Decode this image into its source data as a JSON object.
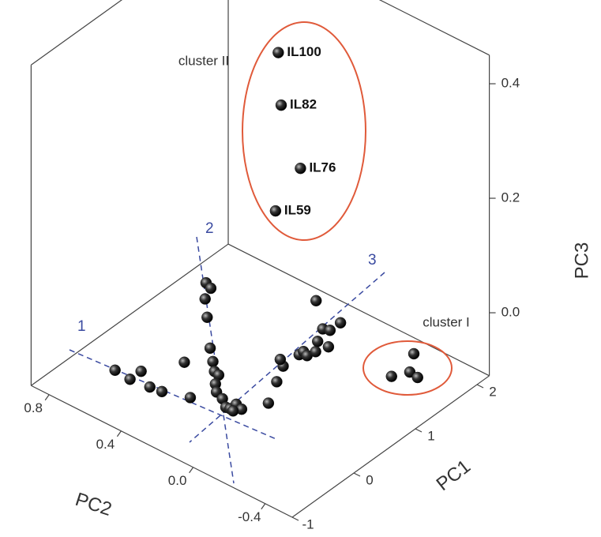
{
  "chart_data": {
    "type": "scatter3d",
    "xlabel": "PC1",
    "ylabel": "PC2",
    "zlabel": "PC3",
    "xlim": [
      -1,
      2.2
    ],
    "ylim": [
      -0.55,
      0.9
    ],
    "zlim": [
      -0.11,
      0.45
    ],
    "xticks": [
      -1,
      0,
      1,
      2
    ],
    "yticks": [
      -0.4,
      {
        "value": 0,
        "label": "0.0"
      },
      0.4,
      0.8
    ],
    "zticks": [
      {
        "value": 0,
        "label": "0.0"
      },
      0.2,
      0.4
    ],
    "color": "#222222",
    "x": [
      -0.69,
      -0.71,
      -0.53,
      -0.68,
      -0.66,
      -0.55,
      -0.12,
      1.08,
      1.04,
      0.86,
      0.63,
      0.24,
      0.08,
      -0.04,
      -0.06,
      -0.2,
      -0.3,
      -0.35,
      -0.44,
      -0.43,
      -0.33,
      -0.36,
      -0.44,
      -0.1,
      0.24,
      0.49,
      0.56,
      0.75,
      0.82,
      0.79,
      0.9,
      1.05,
      1.25,
      1.05,
      1.28,
      1.45,
      1.58,
      1.53,
      1.08,
      1.26,
      1.24
    ],
    "y": [
      0.54,
      0.45,
      0.45,
      0.35,
      0.29,
      0.17,
      0.35,
      0.64,
      0.6,
      0.57,
      0.48,
      0.33,
      0.26,
      0.21,
      0.18,
      0.15,
      0.11,
      0.06,
      0.01,
      -0.01,
      -0.01,
      -0.05,
      -0.03,
      -0.11,
      -0.04,
      0.01,
      0.05,
      0.01,
      0.01,
      -0.02,
      -0.03,
      0.01,
      0.05,
      -0.05,
      0.02,
      0.02,
      0.2,
      -0.36,
      -0.39,
      -0.43,
      -0.48
    ],
    "z": [
      -0.05,
      -0.05,
      -0.05,
      -0.05,
      -0.05,
      -0.05,
      -0.05,
      -0.05,
      -0.05,
      -0.05,
      -0.05,
      -0.05,
      -0.05,
      -0.05,
      -0.05,
      -0.05,
      -0.05,
      -0.05,
      -0.05,
      -0.05,
      -0.05,
      -0.05,
      -0.05,
      -0.05,
      -0.05,
      -0.05,
      -0.05,
      -0.05,
      -0.05,
      -0.05,
      -0.05,
      -0.05,
      -0.05,
      -0.05,
      -0.05,
      -0.05,
      -0.05,
      -0.05,
      -0.05,
      -0.05,
      -0.05
    ],
    "labeled_points": {
      "labels": [
        "IL100",
        "IL82",
        "IL76",
        "IL59"
      ],
      "x": [
        1.2,
        1.13,
        1.18,
        0.98
      ],
      "y": [
        0.28,
        0.24,
        0.15,
        0.22
      ],
      "z": [
        0.4,
        0.32,
        0.22,
        0.15
      ]
    },
    "cluster_labels": [
      "cluster I",
      "cluster II"
    ],
    "direction_labels": [
      "1",
      "2",
      "3"
    ]
  }
}
